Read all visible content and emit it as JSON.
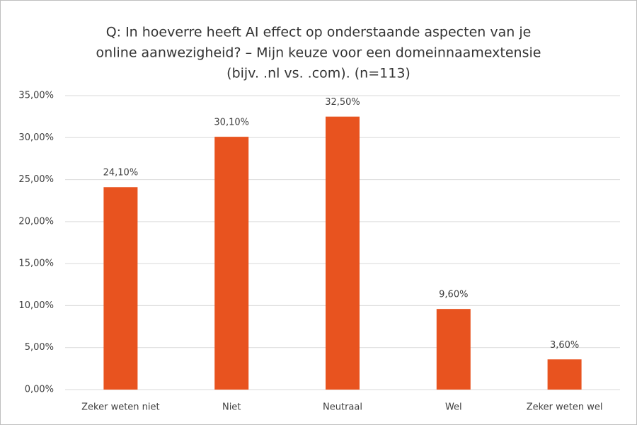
{
  "chart_data": {
    "type": "bar",
    "title": [
      "Q: In hoeverre heeft AI effect op onderstaande aspecten van je",
      "online aanwezigheid? – Mijn keuze voor een domeinnaamextensie",
      "(bijv. .nl vs. .com). (n=113)"
    ],
    "categories": [
      "Zeker weten niet",
      "Niet",
      "Neutraal",
      "Wel",
      "Zeker weten wel"
    ],
    "values": [
      24.1,
      30.1,
      32.5,
      9.6,
      3.6
    ],
    "value_labels": [
      "24,10%",
      "30,10%",
      "32,50%",
      "9,60%",
      "3,60%"
    ],
    "color": "#e8531f",
    "ylim": [
      0,
      35
    ],
    "yticks": [
      {
        "value": 0,
        "label": "0,00%"
      },
      {
        "value": 5,
        "label": "5,00%"
      },
      {
        "value": 10,
        "label": "10,00%"
      },
      {
        "value": 15,
        "label": "15,00%"
      },
      {
        "value": 20,
        "label": "20,00%"
      },
      {
        "value": 25,
        "label": "25,00%"
      },
      {
        "value": 30,
        "label": "30,00%"
      },
      {
        "value": 35,
        "label": "35,00%"
      }
    ],
    "grid": true
  }
}
